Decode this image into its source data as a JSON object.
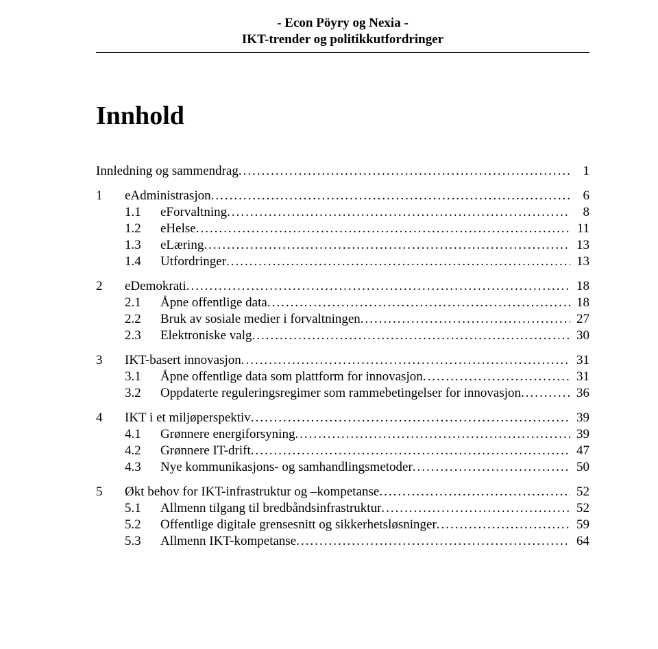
{
  "header": {
    "line1": "- Econ Pöyry og Nexia -",
    "line2": "IKT-trender og politikkutfordringer"
  },
  "title": "Innhold",
  "toc": {
    "groups": [
      {
        "intro": {
          "label": "Innledning og sammendrag",
          "page": "1"
        },
        "section": null,
        "subs": []
      },
      {
        "section": {
          "num": "1",
          "label": "eAdministrasjon",
          "page": "6"
        },
        "subs": [
          {
            "num": "1.1",
            "label": "eForvaltning",
            "page": "8"
          },
          {
            "num": "1.2",
            "label": "eHelse",
            "page": "11"
          },
          {
            "num": "1.3",
            "label": "eLæring",
            "page": "13"
          },
          {
            "num": "1.4",
            "label": "Utfordringer",
            "page": "13"
          }
        ]
      },
      {
        "section": {
          "num": "2",
          "label": "eDemokrati",
          "page": "18"
        },
        "subs": [
          {
            "num": "2.1",
            "label": "Åpne offentlige data",
            "page": "18"
          },
          {
            "num": "2.2",
            "label": "Bruk av sosiale medier i forvaltningen",
            "page": "27"
          },
          {
            "num": "2.3",
            "label": "Elektroniske valg",
            "page": "30"
          }
        ]
      },
      {
        "section": {
          "num": "3",
          "label": "IKT-basert innovasjon",
          "page": "31"
        },
        "subs": [
          {
            "num": "3.1",
            "label": "Åpne offentlige data som plattform for innovasjon",
            "page": "31"
          },
          {
            "num": "3.2",
            "label": "Oppdaterte reguleringsregimer som rammebetingelser for innovasjon",
            "page": "36"
          }
        ]
      },
      {
        "section": {
          "num": "4",
          "label": "IKT i et miljøperspektiv",
          "page": "39"
        },
        "subs": [
          {
            "num": "4.1",
            "label": "Grønnere energiforsyning",
            "page": "39"
          },
          {
            "num": "4.2",
            "label": "Grønnere IT-drift",
            "page": "47"
          },
          {
            "num": "4.3",
            "label": "Nye kommunikasjons- og samhandlingsmetoder",
            "page": "50"
          }
        ]
      },
      {
        "section": {
          "num": "5",
          "label": "Økt behov for IKT-infrastruktur og –kompetanse",
          "page": "52"
        },
        "subs": [
          {
            "num": "5.1",
            "label": "Allmenn tilgang til bredbåndsinfrastruktur",
            "page": "52"
          },
          {
            "num": "5.2",
            "label": "Offentlige digitale grensesnitt og sikkerhetsløsninger",
            "page": "59"
          },
          {
            "num": "5.3",
            "label": "Allmenn IKT-kompetanse",
            "page": "64"
          }
        ]
      }
    ]
  },
  "colors": {
    "background": "#ffffff",
    "text": "#000000",
    "rule": "#000000"
  },
  "typography": {
    "font_family": "Times New Roman",
    "title_fontsize_pt": 28,
    "header_fontsize_pt": 14,
    "body_fontsize_pt": 14
  }
}
